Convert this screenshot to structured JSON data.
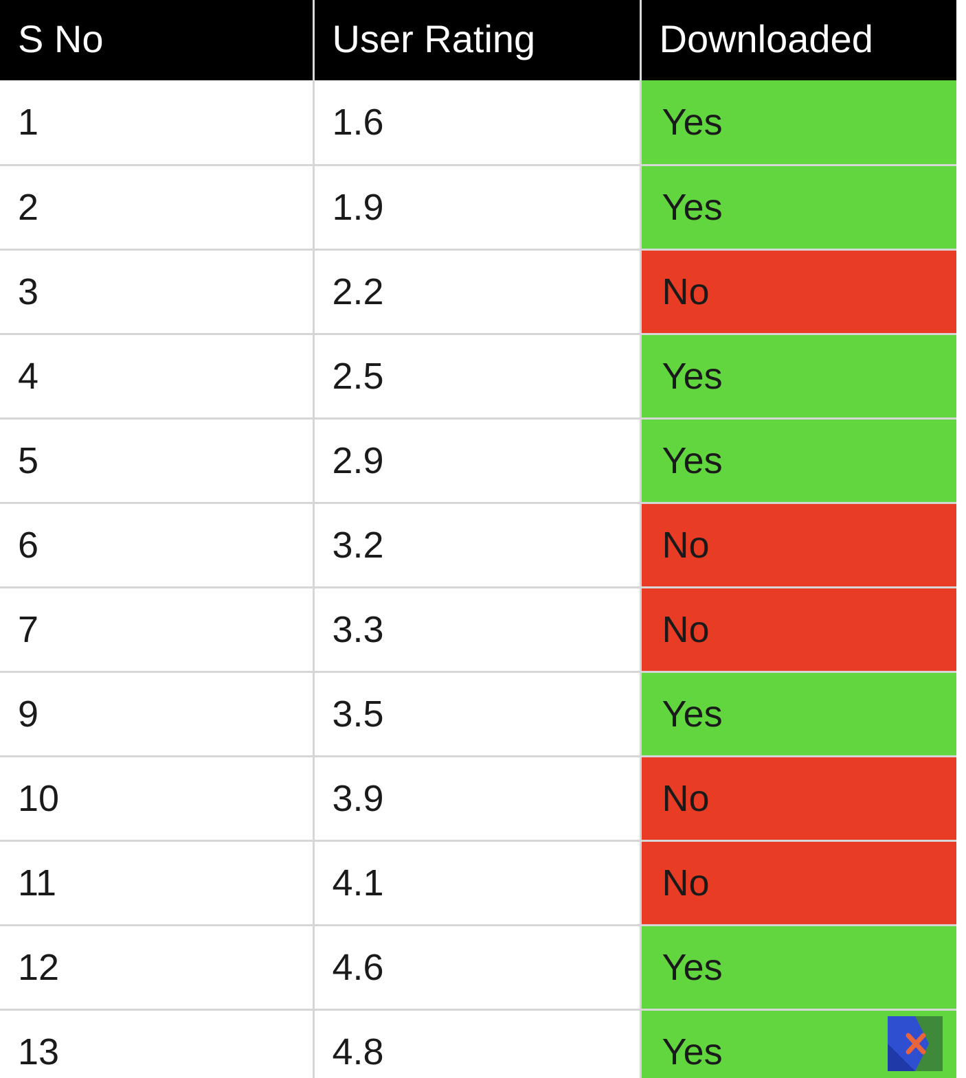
{
  "colors": {
    "header_bg": "#000000",
    "header_text": "#ffffff",
    "yes_bg": "#62d63f",
    "no_bg": "#e83c24",
    "grid_line": "#d6d6d6"
  },
  "chart_data": {
    "type": "table",
    "columns": [
      "S No",
      "User Rating",
      "Downloaded"
    ],
    "rows": [
      {
        "sno": "1",
        "rating": "1.6",
        "downloaded": "Yes"
      },
      {
        "sno": "2",
        "rating": "1.9",
        "downloaded": "Yes"
      },
      {
        "sno": "3",
        "rating": "2.2",
        "downloaded": "No"
      },
      {
        "sno": "4",
        "rating": "2.5",
        "downloaded": "Yes"
      },
      {
        "sno": "5",
        "rating": "2.9",
        "downloaded": "Yes"
      },
      {
        "sno": "6",
        "rating": "3.2",
        "downloaded": "No"
      },
      {
        "sno": "7",
        "rating": "3.3",
        "downloaded": "No"
      },
      {
        "sno": "9",
        "rating": "3.5",
        "downloaded": "Yes"
      },
      {
        "sno": "10",
        "rating": "3.9",
        "downloaded": "No"
      },
      {
        "sno": "11",
        "rating": "4.1",
        "downloaded": "No"
      },
      {
        "sno": "12",
        "rating": "4.6",
        "downloaded": "Yes"
      },
      {
        "sno": "13",
        "rating": "4.8",
        "downloaded": "Yes"
      }
    ]
  },
  "logo": {
    "icon": "brand-logo-icon"
  }
}
